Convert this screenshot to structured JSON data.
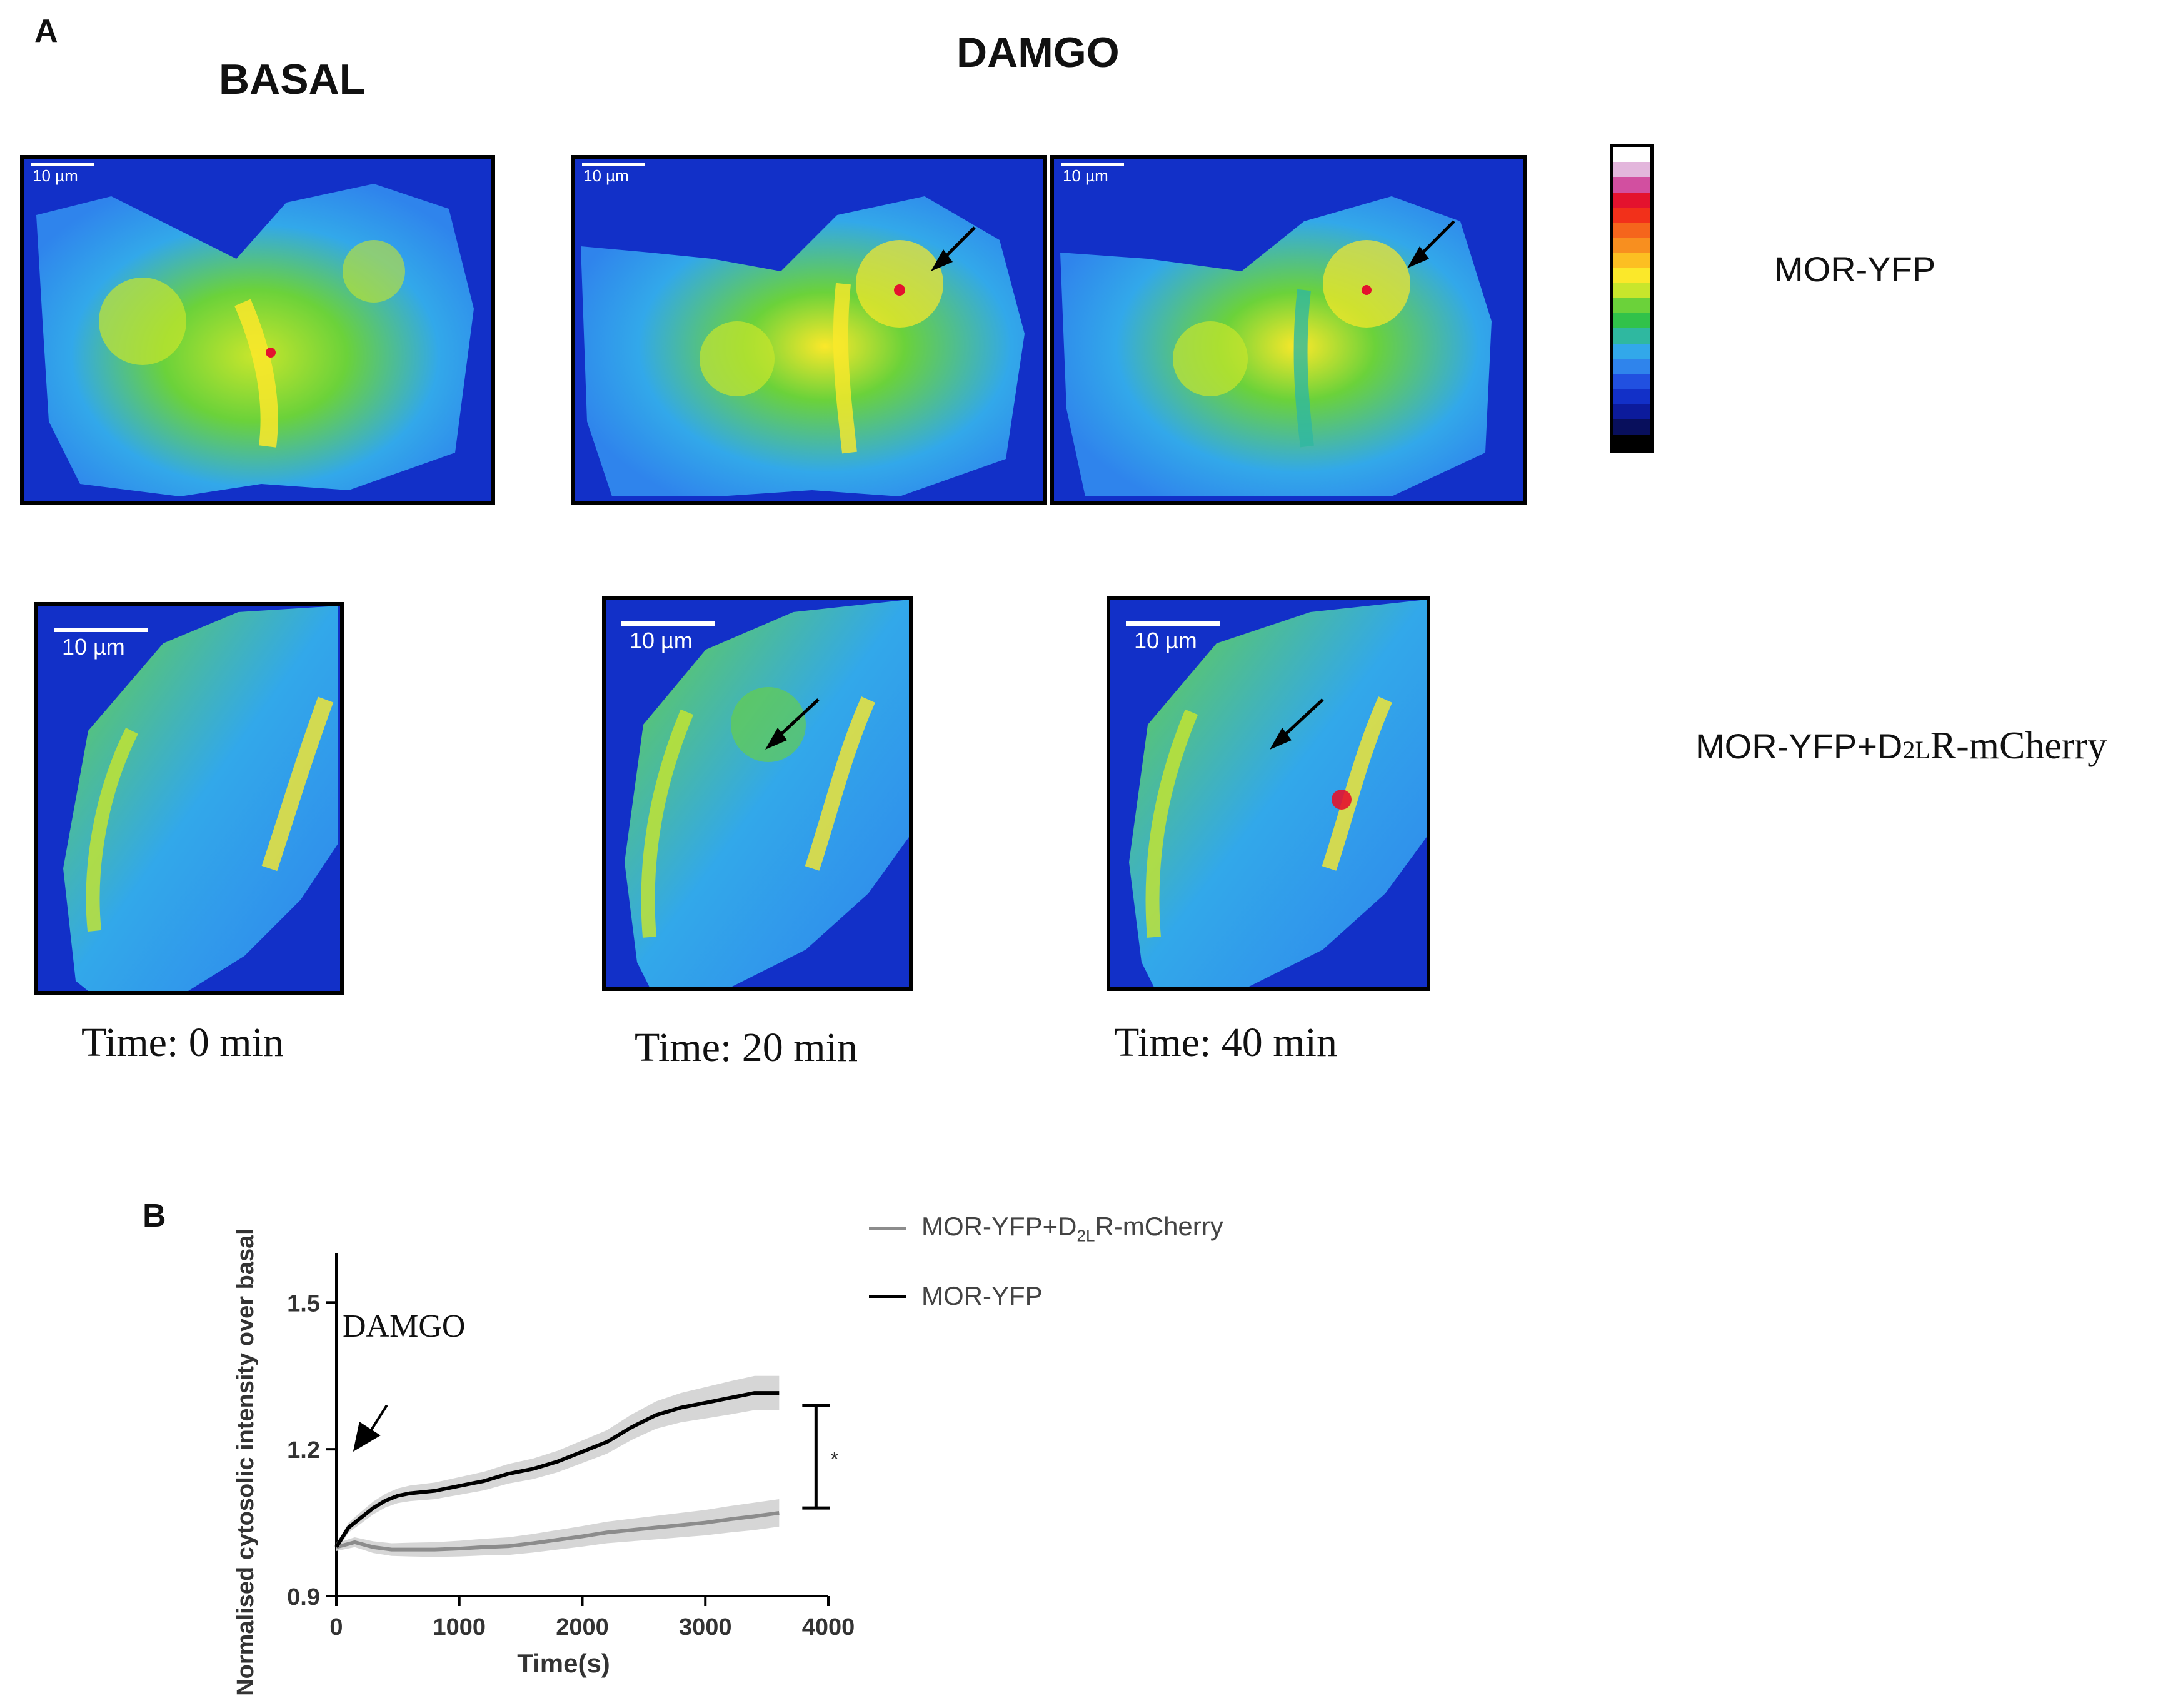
{
  "panel_a": {
    "label": "A",
    "basal_heading": "BASAL",
    "damgo_heading": "DAMGO",
    "scale_bar_label": "10 µm",
    "row_labels": {
      "row1": "MOR-YFP",
      "row2_prefix": "MOR-YFP+D",
      "row2_sub": "2L",
      "row2_suffix": "R-mCherry"
    },
    "time_captions": [
      "Time: 0 min",
      "Time: 20 min",
      "Time: 40 min"
    ],
    "colorbar": [
      "#ffffff",
      "#e3b6dc",
      "#d24fa0",
      "#e4122e",
      "#f2301a",
      "#f5651c",
      "#f88f1f",
      "#fcbf22",
      "#fbe82a",
      "#c8e62c",
      "#6bd23a",
      "#31c24a",
      "#2fb8a0",
      "#32a8ea",
      "#2f84ec",
      "#2150e0",
      "#1230c8",
      "#0c1b9c",
      "#080f5c",
      "#000000"
    ]
  },
  "panel_b": {
    "label": "B",
    "annotation": "DAMGO",
    "significance": "*",
    "legend": [
      {
        "prefix": "MOR-YFP+D",
        "sub": "2L",
        "suffix": "R-mCherry",
        "color": "#8c8c8c"
      },
      {
        "prefix": "MOR-YFP",
        "sub": "",
        "suffix": "",
        "color": "#000000"
      }
    ]
  },
  "chart_data": {
    "type": "line",
    "title": "",
    "xlabel": "Time(s)",
    "ylabel": "Normalised cytosolic intensity over basal",
    "xlim": [
      0,
      4000
    ],
    "ylim": [
      0.9,
      1.6
    ],
    "xticks": [
      0,
      1000,
      2000,
      3000,
      4000
    ],
    "yticks": [
      0.9,
      1.2,
      1.5
    ],
    "ytick_labels": [
      "0.9",
      "1.2",
      "1.5"
    ],
    "series": [
      {
        "name": "MOR-YFP+D2LR-mCherry",
        "color": "#8c8c8c",
        "band_color": "#cfcfcf",
        "x": [
          0,
          150,
          300,
          450,
          600,
          800,
          1000,
          1200,
          1400,
          1600,
          1800,
          2000,
          2200,
          2400,
          2600,
          2800,
          3000,
          3200,
          3400,
          3600
        ],
        "y": [
          1.0,
          1.01,
          1.0,
          0.995,
          0.995,
          0.995,
          0.997,
          1.0,
          1.002,
          1.008,
          1.015,
          1.022,
          1.03,
          1.035,
          1.04,
          1.045,
          1.05,
          1.057,
          1.063,
          1.07
        ],
        "err": [
          0.008,
          0.01,
          0.012,
          0.013,
          0.014,
          0.015,
          0.016,
          0.017,
          0.018,
          0.019,
          0.02,
          0.021,
          0.022,
          0.023,
          0.024,
          0.025,
          0.026,
          0.027,
          0.028,
          0.028
        ]
      },
      {
        "name": "MOR-YFP",
        "color": "#000000",
        "band_color": "#cfcfcf",
        "x": [
          0,
          100,
          200,
          300,
          400,
          500,
          600,
          800,
          1000,
          1200,
          1400,
          1600,
          1800,
          2000,
          2200,
          2400,
          2600,
          2800,
          3000,
          3200,
          3400,
          3600
        ],
        "y": [
          1.0,
          1.04,
          1.06,
          1.08,
          1.095,
          1.105,
          1.11,
          1.115,
          1.125,
          1.135,
          1.15,
          1.16,
          1.175,
          1.195,
          1.215,
          1.245,
          1.27,
          1.285,
          1.295,
          1.305,
          1.315,
          1.315
        ],
        "err": [
          0.008,
          0.01,
          0.012,
          0.013,
          0.014,
          0.015,
          0.016,
          0.017,
          0.018,
          0.019,
          0.02,
          0.021,
          0.022,
          0.023,
          0.024,
          0.026,
          0.028,
          0.03,
          0.032,
          0.034,
          0.035,
          0.035
        ]
      }
    ],
    "annotations": [
      {
        "text": "DAMGO",
        "x": 550,
        "y": 1.43
      },
      {
        "text": "*",
        "x": 4050,
        "y": 1.175
      }
    ],
    "significance_bracket": {
      "x": 3900,
      "y_low": 1.08,
      "y_high": 1.29
    }
  }
}
